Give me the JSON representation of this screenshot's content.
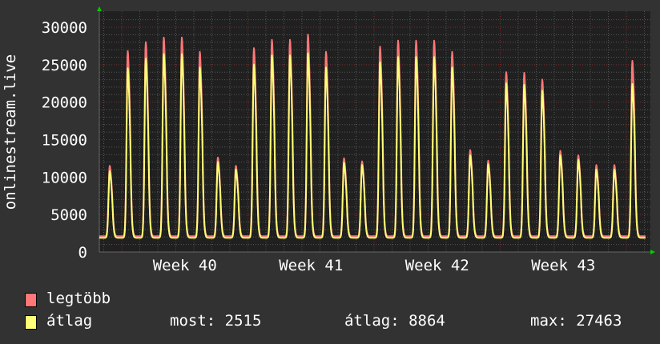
{
  "chart_data": {
    "type": "line",
    "ylabel": "onlinestream.live",
    "ylim": [
      0,
      30000
    ],
    "y_ticks": [
      "0",
      "5000",
      "10000",
      "15000",
      "20000",
      "25000",
      "30000"
    ],
    "x_ticks": [
      "Week 40",
      "Week 41",
      "Week 42",
      "Week 43"
    ],
    "grid": true,
    "series": [
      {
        "name": "legtöbb",
        "color": "#ff7777",
        "daily_peaks": [
          11500,
          26800,
          28000,
          28600,
          28600,
          26700,
          12600,
          11500,
          27200,
          28300,
          28300,
          29000,
          26700,
          12500,
          12100,
          27400,
          28200,
          28200,
          28200,
          26700,
          13600,
          12200,
          24000,
          23900,
          23000,
          13500,
          12900,
          11600,
          11600,
          25500
        ]
      },
      {
        "name": "átlag",
        "color": "#ffff77",
        "daily_peaks": [
          10800,
          24500,
          25800,
          26400,
          26400,
          24600,
          12000,
          11000,
          25000,
          26200,
          26200,
          26500,
          24600,
          11900,
          11600,
          25300,
          26000,
          26000,
          26000,
          24600,
          12900,
          11700,
          22500,
          22300,
          21500,
          12900,
          12300,
          11000,
          11000,
          22400
        ]
      }
    ]
  },
  "legend": {
    "max_label": "legtöbb",
    "avg_label": "átlag",
    "now": "most: 2515",
    "avg": "átlag: 8864",
    "max": "max: 27463"
  }
}
